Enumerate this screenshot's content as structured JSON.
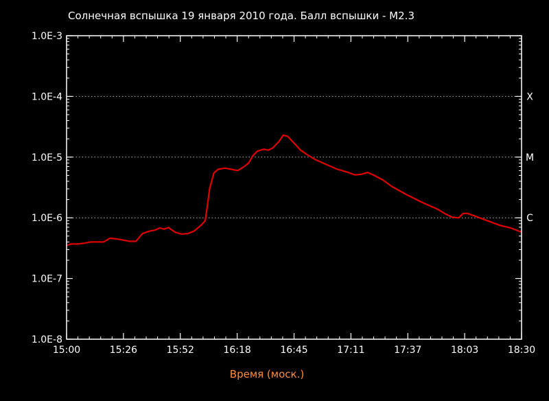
{
  "chart_data": {
    "type": "line",
    "title": "Солнечная вспышка 19 января 2010 года. Балл вспышки - M2.3",
    "xlabel": "Время (моск.)",
    "ylabel": "",
    "y_scale": "log",
    "ylim": [
      1e-08,
      0.001
    ],
    "y_tick_labels": [
      "1.0E-3",
      "1.0E-4",
      "1.0E-5",
      "1.0E-6",
      "1.0E-7",
      "1.0E-8"
    ],
    "y_tick_values": [
      0.001,
      0.0001,
      1e-05,
      1e-06,
      1e-07,
      1e-08
    ],
    "xlim": [
      "15:00",
      "18:30"
    ],
    "x_tick_labels": [
      "15:00",
      "15:26",
      "15:52",
      "16:18",
      "16:45",
      "17:11",
      "17:37",
      "18:03",
      "18:30"
    ],
    "flare_classes": [
      {
        "label": "X",
        "value": 0.0001
      },
      {
        "label": "M",
        "value": 1e-05
      },
      {
        "label": "C",
        "value": 1e-06
      }
    ],
    "grid": "dotted horizontal lines at 1.0E-4, 1.0E-5 and 1.0E-6",
    "series": [
      {
        "color": "#e00000",
        "points": [
          [
            "15:00",
            3.5e-07
          ],
          [
            "15:02",
            3.7e-07
          ],
          [
            "15:05",
            3.7e-07
          ],
          [
            "15:08",
            3.8e-07
          ],
          [
            "15:11",
            4e-07
          ],
          [
            "15:14",
            4e-07
          ],
          [
            "15:17",
            4e-07
          ],
          [
            "15:20",
            4.6e-07
          ],
          [
            "15:23",
            4.5e-07
          ],
          [
            "15:26",
            4.3e-07
          ],
          [
            "15:29",
            4.1e-07
          ],
          [
            "15:32",
            4.1e-07
          ],
          [
            "15:35",
            5.5e-07
          ],
          [
            "15:38",
            6e-07
          ],
          [
            "15:41",
            6.3e-07
          ],
          [
            "15:43",
            6.8e-07
          ],
          [
            "15:45",
            6.5e-07
          ],
          [
            "15:47",
            6.9e-07
          ],
          [
            "15:50",
            5.8e-07
          ],
          [
            "15:53",
            5.4e-07
          ],
          [
            "15:56",
            5.5e-07
          ],
          [
            "15:59",
            6.1e-07
          ],
          [
            "16:02",
            7.5e-07
          ],
          [
            "16:04",
            9e-07
          ],
          [
            "16:05",
            1.6e-06
          ],
          [
            "16:06",
            3e-06
          ],
          [
            "16:08",
            5.5e-06
          ],
          [
            "16:10",
            6.3e-06
          ],
          [
            "16:13",
            6.6e-06
          ],
          [
            "16:16",
            6.3e-06
          ],
          [
            "16:19",
            6e-06
          ],
          [
            "16:22",
            7e-06
          ],
          [
            "16:24",
            8e-06
          ],
          [
            "16:26",
            1.05e-05
          ],
          [
            "16:28",
            1.25e-05
          ],
          [
            "16:31",
            1.35e-05
          ],
          [
            "16:33",
            1.3e-05
          ],
          [
            "16:35",
            1.4e-05
          ],
          [
            "16:38",
            1.8e-05
          ],
          [
            "16:40",
            2.3e-05
          ],
          [
            "16:42",
            2.2e-05
          ],
          [
            "16:45",
            1.7e-05
          ],
          [
            "16:48",
            1.3e-05
          ],
          [
            "16:51",
            1.1e-05
          ],
          [
            "16:55",
            9e-06
          ],
          [
            "17:00",
            7.5e-06
          ],
          [
            "17:05",
            6.3e-06
          ],
          [
            "17:10",
            5.6e-06
          ],
          [
            "17:13",
            5.1e-06
          ],
          [
            "17:16",
            5.2e-06
          ],
          [
            "17:19",
            5.6e-06
          ],
          [
            "17:22",
            5e-06
          ],
          [
            "17:26",
            4.2e-06
          ],
          [
            "17:30",
            3.3e-06
          ],
          [
            "17:37",
            2.4e-06
          ],
          [
            "17:44",
            1.8e-06
          ],
          [
            "17:51",
            1.4e-06
          ],
          [
            "17:55",
            1.15e-06
          ],
          [
            "17:58",
            1.02e-06
          ],
          [
            "18:01",
            1e-06
          ],
          [
            "18:03",
            1.18e-06
          ],
          [
            "18:05",
            1.18e-06
          ],
          [
            "18:09",
            1.05e-06
          ],
          [
            "18:14",
            9e-07
          ],
          [
            "18:20",
            7.5e-07
          ],
          [
            "18:25",
            6.8e-07
          ],
          [
            "18:30",
            5.8e-07
          ]
        ]
      }
    ],
    "colors": {
      "background": "#000000",
      "axes": "#ffffff",
      "text": "#ffffff",
      "xlabel": "#ff8c3a",
      "line": "#e00000"
    }
  }
}
